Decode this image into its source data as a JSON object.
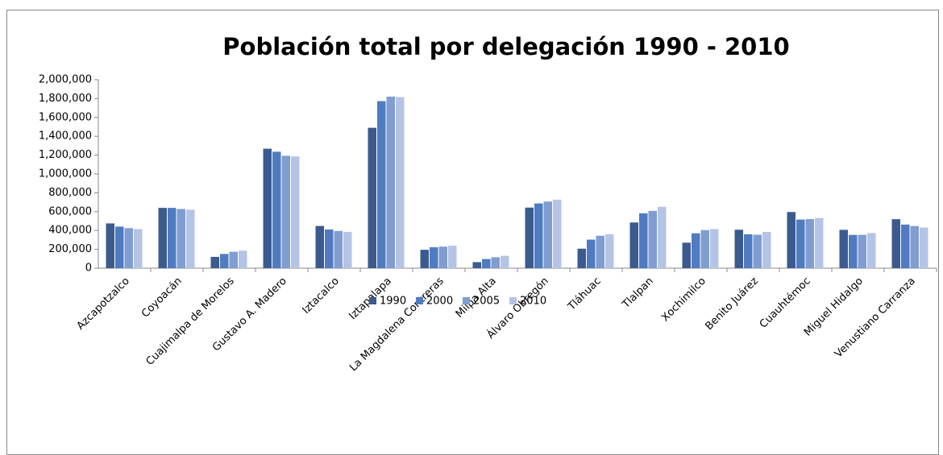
{
  "chart_data": {
    "type": "bar",
    "title": "Población total por delegación 1990 - 2010",
    "categories": [
      "Azcapotzalco",
      "Coyoacán",
      "Cuajimalpa de Morelos",
      "Gustavo A. Madero",
      "Iztacalco",
      "Iztapalapa",
      "La Magdalena Contreras",
      "Milpa Alta",
      "Álvaro Obregón",
      "Tláhuac",
      "Tlalpan",
      "Xochimilco",
      "Benito Juárez",
      "Cuauhtémoc",
      "Miguel Hidalgo",
      "Venustiano Carranza"
    ],
    "series": [
      {
        "name": "1990",
        "color": "#3b5b8f",
        "values": [
          475000,
          640000,
          120000,
          1268000,
          448000,
          1490000,
          195000,
          64000,
          643000,
          207000,
          485000,
          271000,
          408000,
          596000,
          407000,
          520000
        ]
      },
      {
        "name": "2000",
        "color": "#4f7bc1",
        "values": [
          441000,
          640000,
          151000,
          1236000,
          411000,
          1773000,
          222000,
          97000,
          687000,
          303000,
          582000,
          370000,
          360000,
          516000,
          353000,
          463000
        ]
      },
      {
        "name": "2005",
        "color": "#7f9dd1",
        "values": [
          425000,
          628000,
          174000,
          1193000,
          395000,
          1821000,
          229000,
          116000,
          707000,
          344000,
          608000,
          404000,
          355000,
          521000,
          354000,
          447000
        ]
      },
      {
        "name": "2010",
        "color": "#b4c4e4",
        "values": [
          415000,
          620000,
          186000,
          1186000,
          384000,
          1816000,
          239000,
          131000,
          727000,
          360000,
          651000,
          415000,
          385000,
          532000,
          373000,
          431000
        ]
      }
    ],
    "ylim": [
      0,
      2000000
    ],
    "yticks": [
      0,
      {
        "value": 200000,
        "label": "200,000"
      },
      {
        "value": 400000,
        "label": "400,000"
      },
      {
        "value": 600000,
        "label": "600,000"
      },
      {
        "value": 800000,
        "label": "800,000"
      },
      {
        "value": 1000000,
        "label": "1,000,000"
      },
      {
        "value": 1200000,
        "label": "1,200,000"
      },
      {
        "value": 1400000,
        "label": "1,400,000"
      },
      {
        "value": 1600000,
        "label": "1,600,000"
      },
      {
        "value": 1800000,
        "label": "1,800,000"
      },
      {
        "value": 2000000,
        "label": "2,000,000"
      }
    ],
    "grid": false,
    "legend": "bottom"
  }
}
